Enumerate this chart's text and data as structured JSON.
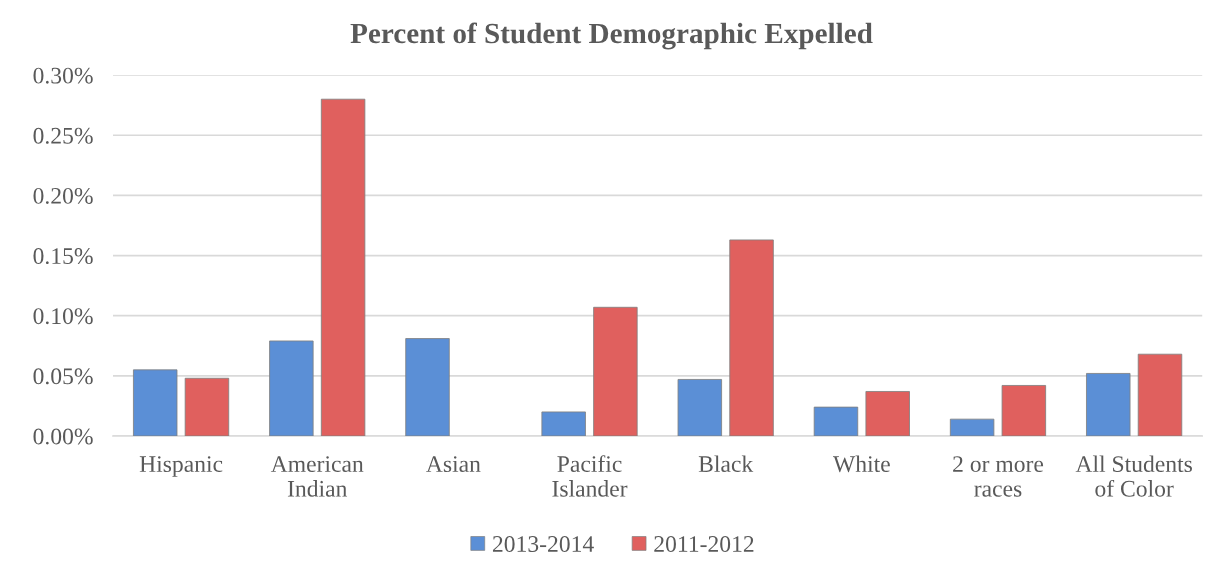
{
  "chart_data": {
    "type": "bar",
    "title": "Percent of Student Demographic Expelled",
    "categories": [
      "Hispanic",
      "American\nIndian",
      "Asian",
      "Pacific\nIslander",
      "Black",
      "White",
      "2 or more\nraces",
      "All Students\nof Color"
    ],
    "series": [
      {
        "name": "2013-2014",
        "color": "#5b8fd6",
        "values": [
          0.055,
          0.079,
          0.081,
          0.02,
          0.047,
          0.024,
          0.014,
          0.052
        ]
      },
      {
        "name": "2011-2012",
        "color": "#e0605e",
        "values": [
          0.048,
          0.28,
          null,
          0.107,
          0.163,
          0.037,
          0.042,
          0.068
        ]
      }
    ],
    "ylim": [
      0,
      0.3
    ],
    "yticks": [
      {
        "value": 0,
        "label": "0.00%"
      },
      {
        "value": 0.05,
        "label": "0.05%"
      },
      {
        "value": 0.1,
        "label": "0.10%"
      },
      {
        "value": 0.15,
        "label": "0.15%"
      },
      {
        "value": 0.2,
        "label": "0.20%"
      },
      {
        "value": 0.25,
        "label": "0.25%"
      },
      {
        "value": 0.3,
        "label": "0.30%"
      }
    ],
    "grid": "y",
    "legend": "bottom"
  }
}
